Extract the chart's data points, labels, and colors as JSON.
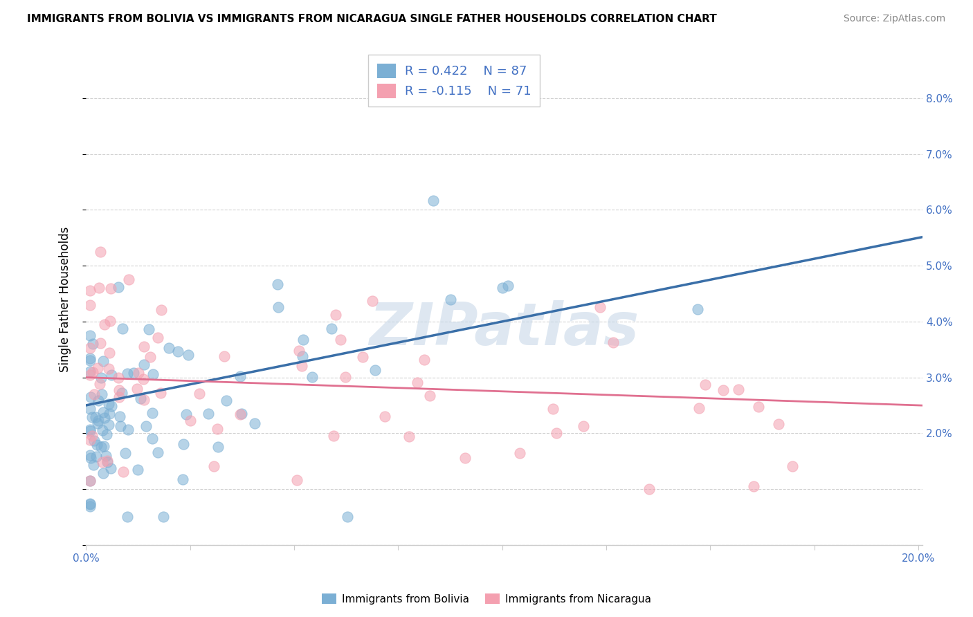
{
  "title": "IMMIGRANTS FROM BOLIVIA VS IMMIGRANTS FROM NICARAGUA SINGLE FATHER HOUSEHOLDS CORRELATION CHART",
  "source": "Source: ZipAtlas.com",
  "ylabel": "Single Father Households",
  "xlim": [
    0.0,
    0.201
  ],
  "ylim": [
    0.0,
    0.088
  ],
  "bolivia_color": "#7bafd4",
  "nicaragua_color": "#f4a0b0",
  "bolivia_R": 0.422,
  "bolivia_N": 87,
  "nicaragua_R": -0.115,
  "nicaragua_N": 71,
  "bolivia_line_color": "#3a6fa8",
  "nicaragua_line_color": "#e07090",
  "text_color": "#4472c4",
  "watermark": "ZIPatlas",
  "seed_bolivia": 15,
  "seed_nicaragua": 77
}
